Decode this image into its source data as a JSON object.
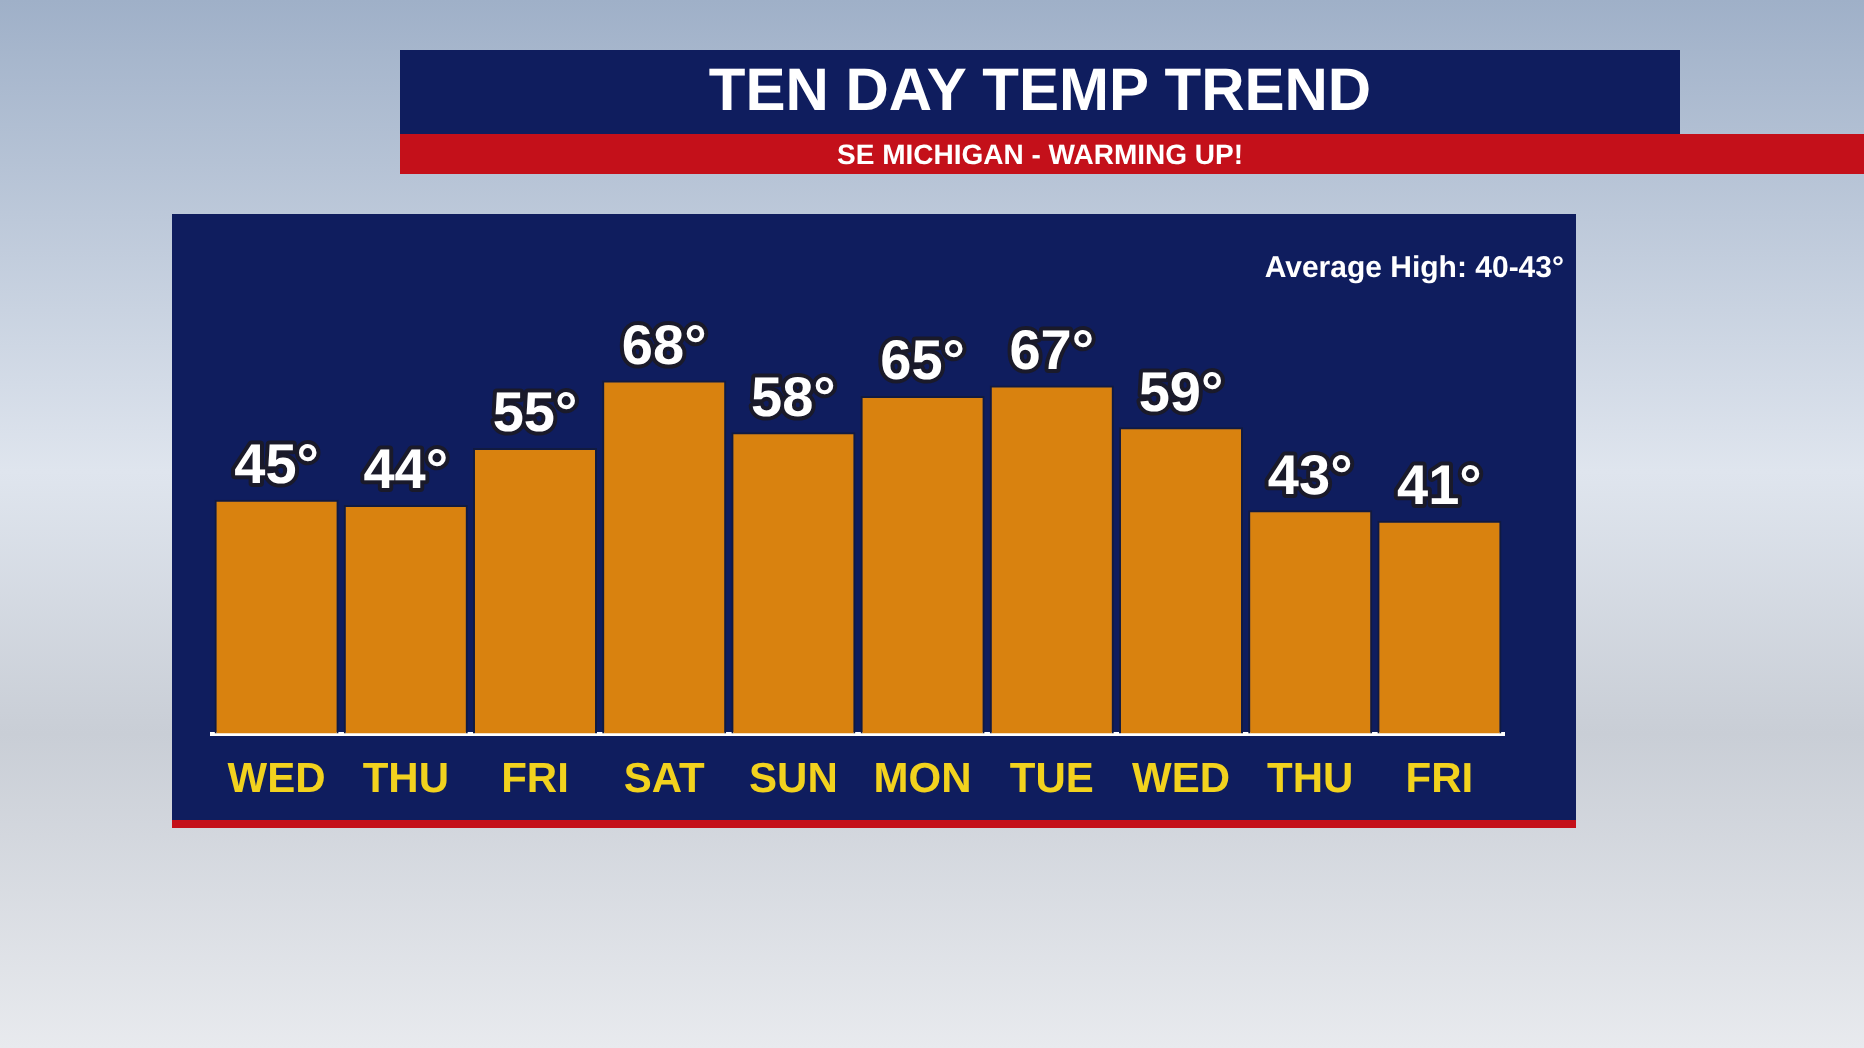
{
  "chart_data": {
    "type": "bar",
    "title": "TEN DAY TEMP TREND",
    "subtitle": "SE MICHIGAN - WARMING UP!",
    "categories": [
      "WED",
      "THU",
      "FRI",
      "SAT",
      "SUN",
      "MON",
      "TUE",
      "WED",
      "THU",
      "FRI"
    ],
    "values": [
      45,
      44,
      55,
      68,
      58,
      65,
      67,
      59,
      43,
      41
    ],
    "value_labels": [
      "45°",
      "44°",
      "55°",
      "68°",
      "58°",
      "65°",
      "67°",
      "59°",
      "43°",
      "41°"
    ],
    "color": "#d9820f",
    "tick_labels": "x",
    "grid": false,
    "legend": false,
    "annotations": [
      "Average High: 40-43°"
    ]
  }
}
